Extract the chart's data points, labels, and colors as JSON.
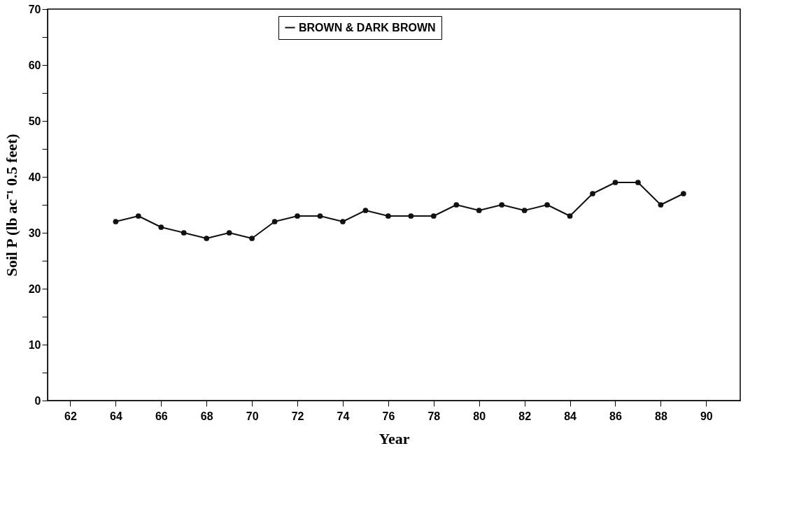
{
  "chart_data": {
    "type": "line",
    "xlabel": "Year",
    "ylabel": "Soil P (lb ac⁻¹ 0.5 feet)",
    "x": [
      64,
      65,
      66,
      67,
      68,
      69,
      70,
      71,
      72,
      73,
      74,
      75,
      76,
      77,
      78,
      79,
      80,
      81,
      82,
      83,
      84,
      85,
      86,
      87,
      88,
      89
    ],
    "series": [
      {
        "name": "BROWN & DARK BROWN",
        "color": "#111111",
        "values": [
          32,
          33,
          31,
          30,
          29,
          30,
          29,
          32,
          33,
          33,
          32,
          34,
          33,
          33,
          33,
          35,
          34,
          35,
          34,
          35,
          33,
          37,
          39,
          39,
          35,
          37
        ]
      }
    ],
    "xlim": [
      61,
      91.5
    ],
    "xticks": [
      62,
      64,
      66,
      68,
      70,
      72,
      74,
      76,
      78,
      80,
      82,
      84,
      86,
      88,
      90
    ],
    "ylim": [
      0,
      70
    ],
    "yticks": [
      0,
      {
        "value": 5,
        "label": null
      },
      10,
      {
        "value": 15,
        "label": null
      },
      20,
      {
        "value": 25,
        "label": null
      },
      30,
      {
        "value": 35,
        "label": null
      },
      40,
      {
        "value": 45,
        "label": null
      },
      50,
      {
        "value": 55,
        "label": null
      },
      60,
      {
        "value": 65,
        "label": null
      },
      70
    ],
    "grid": false,
    "legend": "top",
    "marker": "circle",
    "line_style": "solid"
  }
}
